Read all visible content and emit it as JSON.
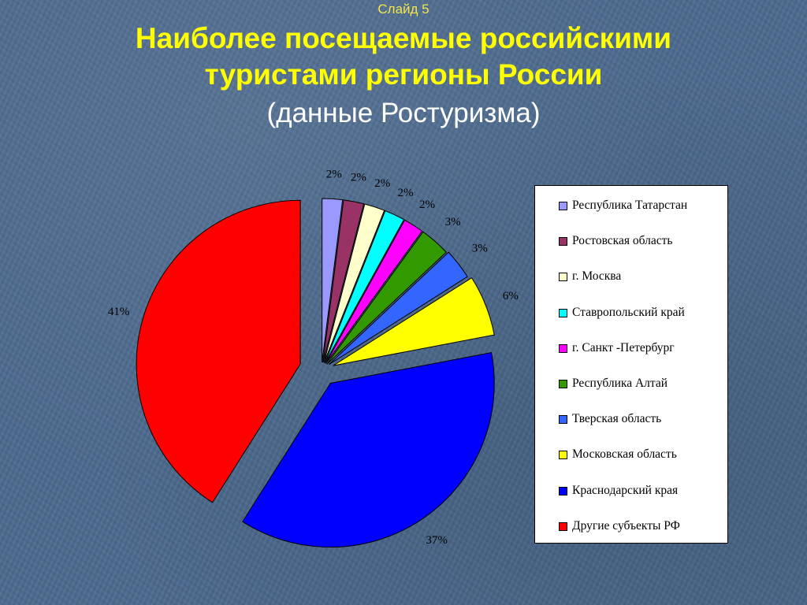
{
  "slide": {
    "number_label": "Слайд 5",
    "title_line1": "Наиболее посещаемые российскими",
    "title_line2": "туристами регионы России",
    "subtitle": "(данные Ростуризма)"
  },
  "chart_data": {
    "type": "pie",
    "categories": [
      "Республика Татарстан",
      "Ростовская область",
      "г. Москва",
      "Ставропольский край",
      "г. Санкт -Петербург",
      "Республика Алтай",
      "Тверская область",
      "Московская область",
      "Краснодарский края",
      "Другие субъекты РФ"
    ],
    "values": [
      2,
      2,
      2,
      2,
      2,
      3,
      3,
      6,
      37,
      41
    ],
    "data_labels": [
      "2%",
      "2%",
      "2%",
      "2%",
      "2%",
      "3%",
      "3%",
      "6%",
      "37%",
      "41%"
    ],
    "colors": [
      "#9999ff",
      "#993366",
      "#ffffcc",
      "#00ffff",
      "#ff00ff",
      "#339900",
      "#3366ff",
      "#ffff00",
      "#0000ff",
      "#ff0000"
    ],
    "exploded": true,
    "start_angle": "12 o'clock, clockwise",
    "legend_position": "right"
  }
}
